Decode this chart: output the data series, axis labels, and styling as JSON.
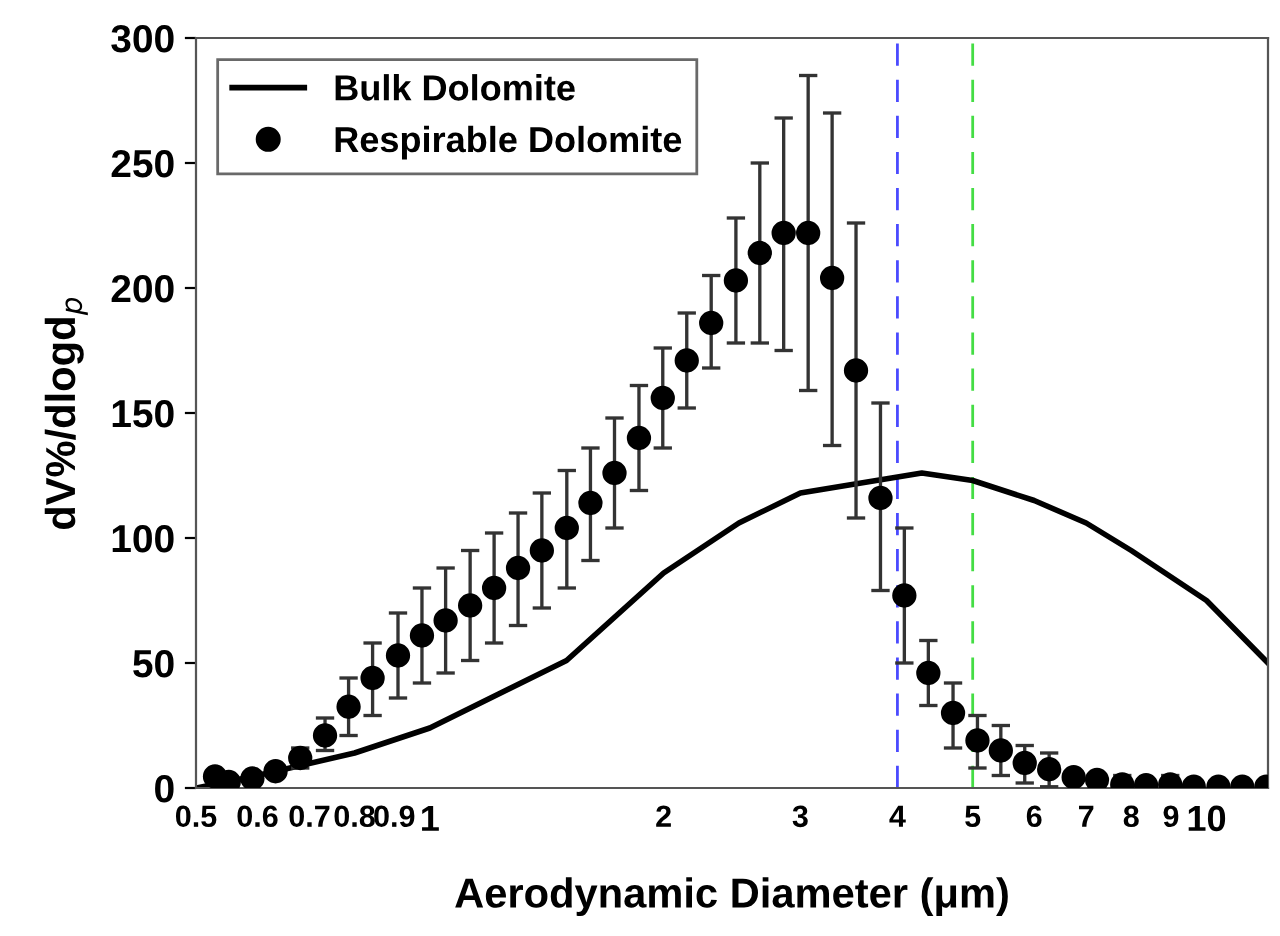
{
  "chart_data": {
    "type": "scatter",
    "xlabel": "Aerodynamic Diameter (μm)",
    "ylabel": "dV%/dlogd$_{p}$",
    "log": "x",
    "xlim": [
      0.5,
      12
    ],
    "ylim": [
      0,
      300
    ],
    "xticks": [
      0.5,
      0.6,
      0.7,
      0.8,
      0.9,
      1,
      2,
      3,
      4,
      5,
      6,
      7,
      8,
      9,
      10
    ],
    "yticks": [
      0,
      50,
      100,
      150,
      200,
      250,
      300
    ],
    "grid": false,
    "legend": "top left",
    "series": [
      {
        "name": "Bulk Dolomite",
        "type": "line",
        "color": "#000000",
        "marker": "none",
        "line_style": "solid",
        "x": [
          0.5,
          0.6,
          0.8,
          1,
          1.5,
          2,
          2.5,
          3,
          4.3,
          5,
          6,
          7,
          8,
          10,
          12
        ],
        "values": [
          0,
          5,
          14,
          24,
          51,
          86,
          106,
          118,
          126,
          123,
          115,
          106,
          95,
          75,
          50
        ]
      },
      {
        "name": "Respirable Dolomite",
        "color": "#000000",
        "marker": "circle",
        "x": [
          0.529,
          0.551,
          0.591,
          0.633,
          0.681,
          0.733,
          0.786,
          0.844,
          0.91,
          0.977,
          1.048,
          1.127,
          1.21,
          1.299,
          1.394,
          1.501,
          1.61,
          1.729,
          1.859,
          1.995,
          2.142,
          2.303,
          2.478,
          2.66,
          2.855,
          3.07,
          3.296,
          3.538,
          3.804,
          4.083,
          4.384,
          4.717,
          5.071,
          5.435,
          5.834,
          6.272,
          6.745,
          7.228,
          7.79,
          8.36,
          8.98,
          9.63,
          10.36,
          11.12,
          11.94
        ],
        "values": [
          4.6,
          2.4,
          3.8,
          6.7,
          12,
          21,
          32.5,
          44,
          53,
          61,
          67,
          73,
          80,
          88,
          95,
          104,
          114,
          126,
          140,
          156,
          171,
          186,
          203,
          214,
          222,
          222,
          204,
          167,
          116,
          77,
          46,
          30,
          19,
          15,
          10,
          7.5,
          4.3,
          3.2,
          1.4,
          1.1,
          1.4,
          0.5,
          0.5,
          0.5,
          0.5
        ],
        "errors": [
          null,
          null,
          null,
          null,
          [
            8,
            16
          ],
          [
            15,
            28
          ],
          [
            21,
            44
          ],
          [
            29,
            58
          ],
          [
            36,
            70
          ],
          [
            42,
            80
          ],
          [
            46,
            88
          ],
          [
            51,
            95
          ],
          [
            58,
            102
          ],
          [
            65,
            110
          ],
          [
            72,
            118
          ],
          [
            80,
            127
          ],
          [
            91,
            136
          ],
          [
            104,
            148
          ],
          [
            119,
            161
          ],
          [
            136,
            176
          ],
          [
            152,
            190
          ],
          [
            168,
            205
          ],
          [
            178,
            228
          ],
          [
            178,
            250
          ],
          [
            175,
            268
          ],
          [
            159,
            285
          ],
          [
            137,
            270
          ],
          [
            108,
            226
          ],
          [
            79,
            154
          ],
          [
            50,
            104
          ],
          [
            33,
            59
          ],
          [
            16,
            42
          ],
          [
            8,
            29
          ],
          [
            5,
            25
          ],
          [
            2,
            17
          ],
          [
            0.5,
            14
          ],
          null,
          null,
          [
            0,
            5
          ],
          null,
          [
            0,
            5
          ],
          null,
          null,
          null,
          null
        ]
      }
    ],
    "ref_lines": [
      {
        "axis": "x",
        "value": 4,
        "color": "#4a4aff",
        "line_style": "dashed"
      },
      {
        "axis": "x",
        "value": 5,
        "color": "#44dd44",
        "line_style": "dashed"
      }
    ]
  }
}
